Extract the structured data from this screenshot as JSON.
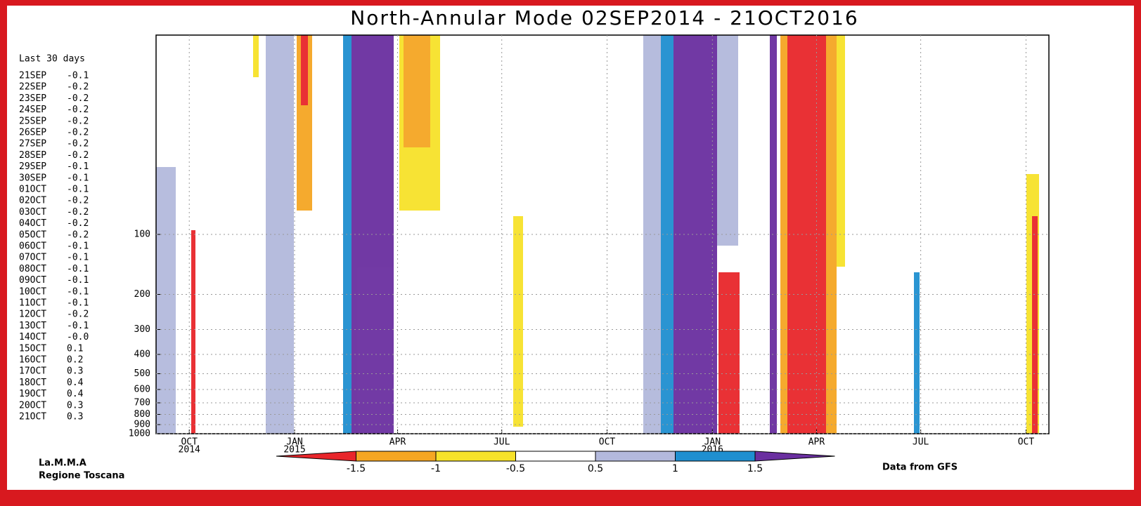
{
  "chart_data": {
    "type": "contour",
    "title": "North-Annular Mode 02SEP2014 - 21OCT2016",
    "xlim": [
      "2014-09-02",
      "2016-10-21"
    ],
    "xticks": [
      {
        "value": "2014-10",
        "label": "OCT",
        "year": "2014"
      },
      {
        "value": "2015-01",
        "label": "JAN",
        "year": "2015"
      },
      {
        "value": "2015-04",
        "label": "APR"
      },
      {
        "value": "2015-07",
        "label": "JUL"
      },
      {
        "value": "2015-10",
        "label": "OCT"
      },
      {
        "value": "2016-01",
        "label": "JAN",
        "year": "2016"
      },
      {
        "value": "2016-04",
        "label": "APR"
      },
      {
        "value": "2016-07",
        "label": "JUL"
      },
      {
        "value": "2016-10",
        "label": "OCT"
      }
    ],
    "log_y": true,
    "ylim": [
      1000,
      10
    ],
    "yticks": [
      100,
      200,
      300,
      400,
      500,
      600,
      700,
      800,
      900,
      1000
    ],
    "grid": true,
    "recent": {
      "title": "Last 30 days",
      "categories": [
        "21SEP",
        "22SEP",
        "23SEP",
        "24SEP",
        "25SEP",
        "26SEP",
        "27SEP",
        "28SEP",
        "29SEP",
        "30SEP",
        "01OCT",
        "02OCT",
        "03OCT",
        "04OCT",
        "05OCT",
        "06OCT",
        "07OCT",
        "08OCT",
        "09OCT",
        "10OCT",
        "11OCT",
        "12OCT",
        "13OCT",
        "14OCT",
        "15OCT",
        "16OCT",
        "17OCT",
        "18OCT",
        "19OCT",
        "20OCT",
        "21OCT"
      ],
      "values": [
        -0.1,
        -0.2,
        -0.2,
        -0.2,
        -0.2,
        -0.2,
        -0.2,
        -0.2,
        -0.1,
        -0.1,
        -0.1,
        -0.2,
        -0.2,
        -0.2,
        -0.2,
        -0.1,
        -0.1,
        -0.1,
        -0.1,
        -0.1,
        -0.1,
        -0.2,
        -0.1,
        -0.0,
        0.1,
        0.2,
        0.3,
        0.4,
        0.4,
        0.3,
        0.3
      ],
      "value_labels": [
        "-0.1",
        "-0.2",
        "-0.2",
        "-0.2",
        "-0.2",
        "-0.2",
        "-0.2",
        "-0.2",
        "-0.1",
        "-0.1",
        "-0.1",
        "-0.2",
        "-0.2",
        "-0.2",
        "-0.2",
        "-0.1",
        "-0.1",
        "-0.1",
        "-0.1",
        "-0.1",
        "-0.1",
        "-0.2",
        "-0.1",
        "-0.0",
        "0.1",
        "0.2",
        "0.3",
        "0.4",
        "0.4",
        "0.3",
        "0.3"
      ]
    },
    "colorbar": {
      "levels": [
        -1.5,
        -1,
        -0.5,
        0.5,
        1,
        1.5
      ],
      "colors": [
        "#e8262b",
        "#f5a623",
        "#f7e22a",
        "#ffffff",
        "#b3b9dc",
        "#1f8fd0",
        "#6a2fa0"
      ]
    },
    "credit": [
      "La.M.M.A",
      "Regione Toscana"
    ],
    "source": "Data from GFS"
  }
}
